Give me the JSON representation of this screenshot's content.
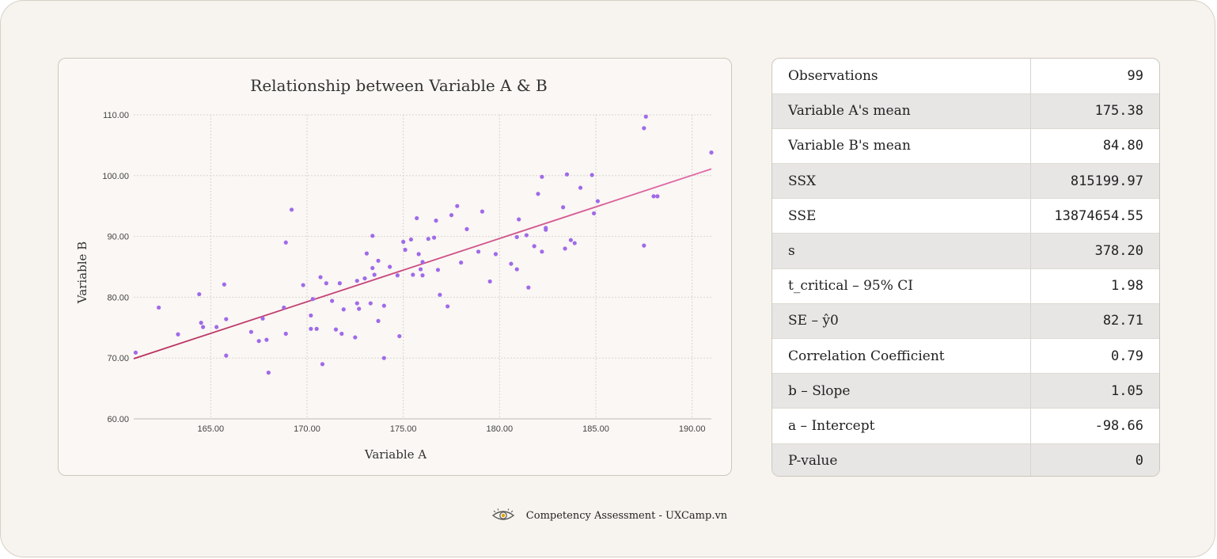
{
  "chart_data": {
    "type": "scatter",
    "title": "Relationship between Variable A & B",
    "xlabel": "Variable A",
    "ylabel": "Variable B",
    "xlim": [
      161,
      191
    ],
    "ylim": [
      60,
      110
    ],
    "xticks": [
      "165.00",
      "170.00",
      "175.00",
      "180.00",
      "185.00",
      "190.00"
    ],
    "yticks": [
      "60.00",
      "70.00",
      "80.00",
      "90.00",
      "100.00",
      "110.00"
    ],
    "grid": true,
    "point_color": "#a06ae8",
    "trend_line": {
      "x": [
        161,
        191
      ],
      "y": [
        69.9,
        101.1
      ],
      "color_start": "#b8305e",
      "color_end": "#e06aa8"
    },
    "points": [
      [
        161.1,
        70.9
      ],
      [
        162.3,
        78.3
      ],
      [
        163.3,
        73.9
      ],
      [
        164.4,
        80.5
      ],
      [
        164.5,
        75.8
      ],
      [
        164.6,
        75.1
      ],
      [
        165.3,
        75.1
      ],
      [
        165.7,
        82.1
      ],
      [
        165.8,
        76.4
      ],
      [
        165.8,
        70.4
      ],
      [
        167.1,
        74.3
      ],
      [
        167.5,
        72.8
      ],
      [
        167.7,
        76.5
      ],
      [
        167.9,
        73.0
      ],
      [
        168.0,
        67.6
      ],
      [
        168.8,
        78.3
      ],
      [
        168.9,
        74.0
      ],
      [
        168.9,
        89.0
      ],
      [
        169.2,
        94.4
      ],
      [
        169.8,
        82.0
      ],
      [
        170.2,
        74.8
      ],
      [
        170.2,
        77.0
      ],
      [
        170.3,
        79.7
      ],
      [
        170.5,
        74.8
      ],
      [
        170.7,
        83.3
      ],
      [
        170.8,
        69.0
      ],
      [
        171.0,
        82.3
      ],
      [
        171.3,
        79.4
      ],
      [
        171.5,
        74.7
      ],
      [
        171.7,
        82.3
      ],
      [
        171.8,
        74.0
      ],
      [
        171.9,
        78.0
      ],
      [
        172.5,
        73.4
      ],
      [
        172.6,
        82.7
      ],
      [
        172.6,
        79.0
      ],
      [
        172.7,
        78.1
      ],
      [
        173.0,
        83.1
      ],
      [
        173.1,
        87.2
      ],
      [
        173.3,
        79.0
      ],
      [
        173.4,
        84.8
      ],
      [
        173.4,
        90.1
      ],
      [
        173.5,
        83.7
      ],
      [
        173.7,
        76.1
      ],
      [
        173.7,
        86.0
      ],
      [
        174.0,
        70.0
      ],
      [
        174.0,
        78.6
      ],
      [
        174.3,
        85.0
      ],
      [
        174.7,
        83.6
      ],
      [
        174.8,
        73.6
      ],
      [
        175.0,
        89.1
      ],
      [
        175.1,
        87.8
      ],
      [
        175.4,
        89.5
      ],
      [
        175.5,
        83.7
      ],
      [
        175.7,
        93.0
      ],
      [
        175.8,
        87.1
      ],
      [
        175.9,
        84.6
      ],
      [
        176.0,
        83.6
      ],
      [
        176.0,
        85.8
      ],
      [
        176.3,
        89.6
      ],
      [
        176.6,
        89.8
      ],
      [
        176.7,
        92.6
      ],
      [
        176.8,
        84.5
      ],
      [
        176.9,
        80.4
      ],
      [
        177.3,
        78.5
      ],
      [
        177.5,
        93.5
      ],
      [
        177.8,
        95.0
      ],
      [
        178.0,
        85.7
      ],
      [
        178.3,
        91.2
      ],
      [
        178.9,
        87.5
      ],
      [
        179.1,
        94.1
      ],
      [
        179.5,
        82.6
      ],
      [
        179.8,
        87.1
      ],
      [
        180.6,
        85.5
      ],
      [
        180.9,
        84.6
      ],
      [
        180.9,
        89.9
      ],
      [
        181.0,
        92.8
      ],
      [
        181.4,
        90.2
      ],
      [
        181.5,
        81.6
      ],
      [
        181.8,
        88.4
      ],
      [
        182.0,
        97.0
      ],
      [
        182.2,
        87.5
      ],
      [
        182.2,
        99.8
      ],
      [
        182.4,
        91.4
      ],
      [
        182.4,
        91.1
      ],
      [
        183.3,
        94.8
      ],
      [
        183.4,
        88.0
      ],
      [
        183.5,
        100.2
      ],
      [
        183.7,
        89.4
      ],
      [
        183.9,
        88.9
      ],
      [
        184.2,
        98.0
      ],
      [
        184.8,
        100.1
      ],
      [
        184.9,
        93.8
      ],
      [
        185.1,
        95.8
      ],
      [
        187.5,
        107.8
      ],
      [
        187.5,
        88.5
      ],
      [
        187.6,
        109.7
      ],
      [
        188.0,
        96.6
      ],
      [
        188.2,
        96.6
      ],
      [
        191.0,
        103.8
      ]
    ]
  },
  "stats": [
    {
      "label": "Observations",
      "value": "99"
    },
    {
      "label": "Variable A's mean",
      "value": "175.38"
    },
    {
      "label": "Variable B's mean",
      "value": "84.80"
    },
    {
      "label": "SSX",
      "value": "815199.97"
    },
    {
      "label": "SSE",
      "value": "13874654.55"
    },
    {
      "label": "s",
      "value": "378.20"
    },
    {
      "label": "t_critical –  95% CI",
      "value": "1.98"
    },
    {
      "label": "SE –  ŷ0",
      "value": "82.71"
    },
    {
      "label": "Correlation Coefficient",
      "value": "0.79"
    },
    {
      "label": "b – Slope",
      "value": "1.05"
    },
    {
      "label": "a – Intercept",
      "value": "-98.66"
    },
    {
      "label": "P-value",
      "value": "0"
    }
  ],
  "footer": {
    "text": "Competency Assessment - UXCamp.vn",
    "icon": "eye-icon"
  }
}
